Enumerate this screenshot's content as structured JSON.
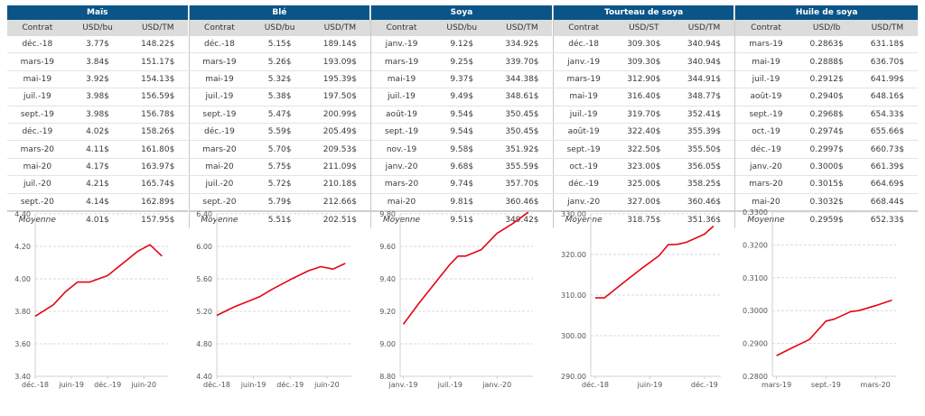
{
  "colors": {
    "header_bg": "#0b5488",
    "subheader_bg": "#dcdcdc",
    "line": "#e30613",
    "grid": "#d9d9d9"
  },
  "tables": [
    {
      "title": "Maïs",
      "columns": [
        "Contrat",
        "USD/bu",
        "USD/TM"
      ],
      "rows": [
        [
          "déc.-18",
          "3.77$",
          "148.22$"
        ],
        [
          "mars-19",
          "3.84$",
          "151.17$"
        ],
        [
          "mai-19",
          "3.92$",
          "154.13$"
        ],
        [
          "juil.-19",
          "3.98$",
          "156.59$"
        ],
        [
          "sept.-19",
          "3.98$",
          "156.78$"
        ],
        [
          "déc.-19",
          "4.02$",
          "158.26$"
        ],
        [
          "mars-20",
          "4.11$",
          "161.80$"
        ],
        [
          "mai-20",
          "4.17$",
          "163.97$"
        ],
        [
          "juil.-20",
          "4.21$",
          "165.74$"
        ],
        [
          "sept.-20",
          "4.14$",
          "162.89$"
        ]
      ],
      "average": [
        "Moyenne",
        "4.01$",
        "157.95$"
      ]
    },
    {
      "title": "Blé",
      "columns": [
        "Contrat",
        "USD/bu",
        "USD/TM"
      ],
      "rows": [
        [
          "déc.-18",
          "5.15$",
          "189.14$"
        ],
        [
          "mars-19",
          "5.26$",
          "193.09$"
        ],
        [
          "mai-19",
          "5.32$",
          "195.39$"
        ],
        [
          "juil.-19",
          "5.38$",
          "197.50$"
        ],
        [
          "sept.-19",
          "5.47$",
          "200.99$"
        ],
        [
          "déc.-19",
          "5.59$",
          "205.49$"
        ],
        [
          "mars-20",
          "5.70$",
          "209.53$"
        ],
        [
          "mai-20",
          "5.75$",
          "211.09$"
        ],
        [
          "juil.-20",
          "5.72$",
          "210.18$"
        ],
        [
          "sept.-20",
          "5.79$",
          "212.66$"
        ]
      ],
      "average": [
        "Moyenne",
        "5.51$",
        "202.51$"
      ]
    },
    {
      "title": "Soya",
      "columns": [
        "Contrat",
        "USD/bu",
        "USD/TM"
      ],
      "rows": [
        [
          "janv.-19",
          "9.12$",
          "334.92$"
        ],
        [
          "mars-19",
          "9.25$",
          "339.70$"
        ],
        [
          "mai-19",
          "9.37$",
          "344.38$"
        ],
        [
          "juil.-19",
          "9.49$",
          "348.61$"
        ],
        [
          "août-19",
          "9.54$",
          "350.45$"
        ],
        [
          "sept.-19",
          "9.54$",
          "350.45$"
        ],
        [
          "nov.-19",
          "9.58$",
          "351.92$"
        ],
        [
          "janv.-20",
          "9.68$",
          "355.59$"
        ],
        [
          "mars-20",
          "9.74$",
          "357.70$"
        ],
        [
          "mai-20",
          "9.81$",
          "360.46$"
        ]
      ],
      "average": [
        "Moyenne",
        "9.51$",
        "349.42$"
      ]
    },
    {
      "title": "Tourteau de soya",
      "columns": [
        "Contrat",
        "USD/ST",
        "USD/TM"
      ],
      "rows": [
        [
          "déc.-18",
          "309.30$",
          "340.94$"
        ],
        [
          "janv.-19",
          "309.30$",
          "340.94$"
        ],
        [
          "mars-19",
          "312.90$",
          "344.91$"
        ],
        [
          "mai-19",
          "316.40$",
          "348.77$"
        ],
        [
          "juil.-19",
          "319.70$",
          "352.41$"
        ],
        [
          "août-19",
          "322.40$",
          "355.39$"
        ],
        [
          "sept.-19",
          "322.50$",
          "355.50$"
        ],
        [
          "oct.-19",
          "323.00$",
          "356.05$"
        ],
        [
          "déc.-19",
          "325.00$",
          "358.25$"
        ],
        [
          "janv.-20",
          "327.00$",
          "360.46$"
        ]
      ],
      "average": [
        "Moyenne",
        "318.75$",
        "351.36$"
      ]
    },
    {
      "title": "Huile de soya",
      "columns": [
        "Contrat",
        "USD/lb",
        "USD/TM"
      ],
      "rows": [
        [
          "mars-19",
          "0.2863$",
          "631.18$"
        ],
        [
          "mai-19",
          "0.2888$",
          "636.70$"
        ],
        [
          "juil.-19",
          "0.2912$",
          "641.99$"
        ],
        [
          "août-19",
          "0.2940$",
          "648.16$"
        ],
        [
          "sept.-19",
          "0.2968$",
          "654.33$"
        ],
        [
          "oct.-19",
          "0.2974$",
          "655.66$"
        ],
        [
          "déc.-19",
          "0.2997$",
          "660.73$"
        ],
        [
          "janv.-20",
          "0.3000$",
          "661.39$"
        ],
        [
          "mars-20",
          "0.3015$",
          "664.69$"
        ],
        [
          "mai-20",
          "0.3032$",
          "668.44$"
        ]
      ],
      "average": [
        "Moyenne",
        "0.2959$",
        "652.33$"
      ]
    }
  ],
  "chart_data": [
    {
      "type": "line",
      "name": "Maïs",
      "x": [
        "déc.-18",
        "mars-19",
        "mai-19",
        "juil.-19",
        "sept.-19",
        "déc.-19",
        "mars-20",
        "mai-20",
        "juil.-20",
        "sept.-20"
      ],
      "x_months": [
        0,
        3,
        5,
        7,
        9,
        12,
        15,
        17,
        19,
        21
      ],
      "values": [
        3.77,
        3.84,
        3.92,
        3.98,
        3.98,
        4.02,
        4.11,
        4.17,
        4.21,
        4.14
      ],
      "ylim": [
        3.4,
        4.4
      ],
      "yticks": [
        "3.40",
        "3.60",
        "3.80",
        "4.00",
        "4.20",
        "4.40"
      ],
      "xticks": [
        {
          "label": "déc.-18",
          "m": 0
        },
        {
          "label": "juin-19",
          "m": 6
        },
        {
          "label": "déc.-19",
          "m": 12
        },
        {
          "label": "juin-20",
          "m": 18
        }
      ],
      "xrange_months": [
        0,
        22
      ],
      "grid": true
    },
    {
      "type": "line",
      "name": "Blé",
      "x": [
        "déc.-18",
        "mars-19",
        "mai-19",
        "juil.-19",
        "sept.-19",
        "déc.-19",
        "mars-20",
        "mai-20",
        "juil.-20",
        "sept.-20"
      ],
      "x_months": [
        0,
        3,
        5,
        7,
        9,
        12,
        15,
        17,
        19,
        21
      ],
      "values": [
        5.15,
        5.26,
        5.32,
        5.38,
        5.47,
        5.59,
        5.7,
        5.75,
        5.72,
        5.79
      ],
      "ylim": [
        4.4,
        6.4
      ],
      "yticks": [
        "4.40",
        "4.80",
        "5.20",
        "5.60",
        "6.00",
        "6.40"
      ],
      "xticks": [
        {
          "label": "déc.-18",
          "m": 0
        },
        {
          "label": "juin-19",
          "m": 6
        },
        {
          "label": "déc.-19",
          "m": 12
        },
        {
          "label": "juin-20",
          "m": 18
        }
      ],
      "xrange_months": [
        0,
        22
      ],
      "grid": true
    },
    {
      "type": "line",
      "name": "Soya",
      "x": [
        "janv.-19",
        "mars-19",
        "mai-19",
        "juil.-19",
        "août-19",
        "sept.-19",
        "nov.-19",
        "janv.-20",
        "mars-20",
        "mai-20"
      ],
      "x_months": [
        0,
        2,
        4,
        6,
        7,
        8,
        10,
        12,
        14,
        16
      ],
      "values": [
        9.12,
        9.25,
        9.37,
        9.49,
        9.54,
        9.54,
        9.58,
        9.68,
        9.74,
        9.81
      ],
      "ylim": [
        8.8,
        9.8
      ],
      "yticks": [
        "8.80",
        "9.00",
        "9.20",
        "9.40",
        "9.60",
        "9.80"
      ],
      "xticks": [
        {
          "label": "janv.-19",
          "m": 0
        },
        {
          "label": "juil.-19",
          "m": 6
        },
        {
          "label": "janv.-20",
          "m": 12
        }
      ],
      "xrange_months": [
        -0.4,
        16.6
      ],
      "grid": true
    },
    {
      "type": "line",
      "name": "Tourteau de soya",
      "x": [
        "déc.-18",
        "janv.-19",
        "mars-19",
        "mai-19",
        "juil.-19",
        "août-19",
        "sept.-19",
        "oct.-19",
        "déc.-19",
        "janv.-20"
      ],
      "x_months": [
        0,
        1,
        3,
        5,
        7,
        8,
        9,
        10,
        12,
        13
      ],
      "values": [
        309.3,
        309.3,
        312.9,
        316.4,
        319.7,
        322.4,
        322.5,
        323.0,
        325.0,
        327.0
      ],
      "ylim": [
        290.0,
        330.0
      ],
      "yticks": [
        "290.00",
        "300.00",
        "310.00",
        "320.00",
        "330.00"
      ],
      "xticks": [
        {
          "label": "déc.-18",
          "m": 0
        },
        {
          "label": "juin-19",
          "m": 6
        },
        {
          "label": "déc.-19",
          "m": 12
        }
      ],
      "xrange_months": [
        -0.5,
        13.8
      ],
      "grid": true
    },
    {
      "type": "line",
      "name": "Huile de soya",
      "x": [
        "mars-19",
        "mai-19",
        "juil.-19",
        "août-19",
        "sept.-19",
        "oct.-19",
        "déc.-19",
        "janv.-20",
        "mars-20",
        "mai-20"
      ],
      "x_months": [
        0,
        2,
        4,
        5,
        6,
        7,
        9,
        10,
        12,
        14
      ],
      "values": [
        0.2863,
        0.2888,
        0.2912,
        0.294,
        0.2968,
        0.2974,
        0.2997,
        0.3,
        0.3015,
        0.3032
      ],
      "ylim": [
        0.28,
        0.33
      ],
      "yticks": [
        "0.2800",
        "0.2900",
        "0.3000",
        "0.3100",
        "0.3200",
        "0.3300"
      ],
      "xticks": [
        {
          "label": "mars-19",
          "m": 0
        },
        {
          "label": "sept.-19",
          "m": 6
        },
        {
          "label": "mars-20",
          "m": 12
        }
      ],
      "xrange_months": [
        -0.5,
        14.5
      ],
      "grid": true
    }
  ]
}
